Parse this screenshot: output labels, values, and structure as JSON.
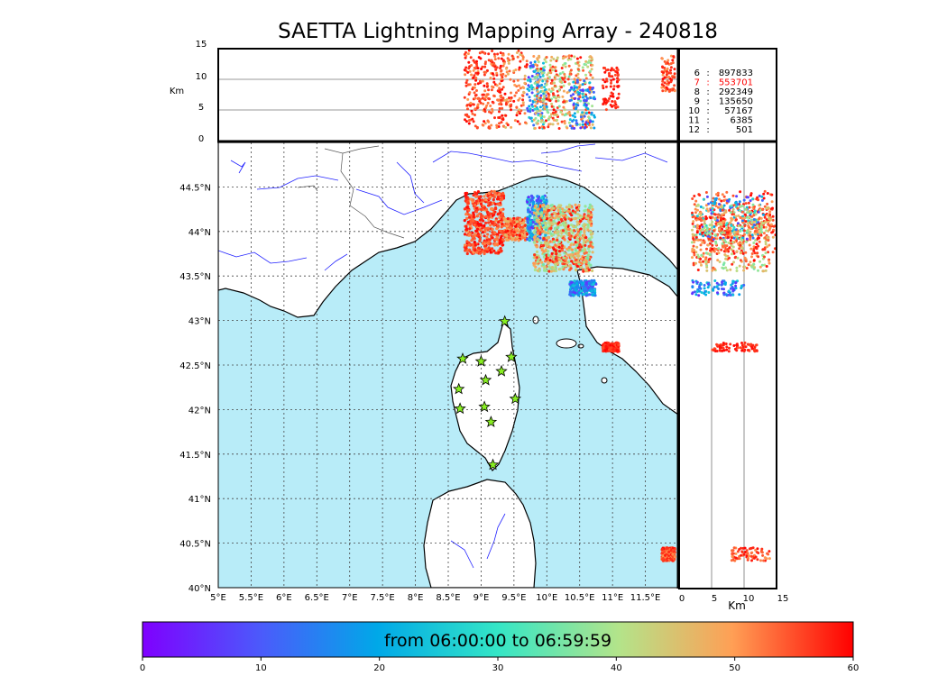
{
  "title": "SAETTA Lightning Mapping Array - 240818",
  "top_panel": {
    "ylabel": "Km",
    "yticks": [
      "0",
      "5",
      "10",
      "15"
    ]
  },
  "right_panel": {
    "xlabel": "Km",
    "xticks": [
      "0",
      "5",
      "10",
      "15"
    ]
  },
  "map": {
    "lon_ticks": [
      "5°E",
      "5.5°E",
      "6°E",
      "6.5°E",
      "7°E",
      "7.5°E",
      "8°E",
      "8.5°E",
      "9°E",
      "9.5°E",
      "10°E",
      "10.5°E",
      "11°E",
      "11.5°E"
    ],
    "lat_ticks": [
      "44.5°N",
      "44°N",
      "43.5°N",
      "43°N",
      "42.5°N",
      "42°N",
      "41.5°N",
      "41°N",
      "40.5°N",
      "40°N"
    ]
  },
  "stations_table": [
    {
      "n": "6",
      "count": "897833",
      "color": "#000000"
    },
    {
      "n": "7",
      "count": "553701",
      "color": "#ff0000"
    },
    {
      "n": "8",
      "count": "292349",
      "color": "#000000"
    },
    {
      "n": "9",
      "count": "135650",
      "color": "#000000"
    },
    {
      "n": "10",
      "count": "57167",
      "color": "#000000"
    },
    {
      "n": "11",
      "count": "6385",
      "color": "#000000"
    },
    {
      "n": "12",
      "count": "501",
      "color": "#000000"
    }
  ],
  "colorbar": {
    "label": "from 06:00:00 to 06:59:59",
    "ticks": [
      "0",
      "10",
      "20",
      "30",
      "40",
      "50",
      "60"
    ],
    "range": [
      0,
      60
    ]
  },
  "chart_data": {
    "type": "scatter",
    "title": "SAETTA Lightning Mapping Array - 240818",
    "xlim": [
      5,
      12
    ],
    "ylim": [
      40,
      45
    ],
    "altitude_range_km": [
      0,
      15
    ],
    "colors": {
      "sea": "#b8ecf8",
      "land": "#ffffff",
      "rivers": "#2222ff",
      "stations": "#88ee22"
    },
    "stations": [
      {
        "lon": 9.36,
        "lat": 42.99
      },
      {
        "lon": 8.72,
        "lat": 42.57
      },
      {
        "lon": 9.0,
        "lat": 42.54
      },
      {
        "lon": 9.46,
        "lat": 42.59
      },
      {
        "lon": 9.31,
        "lat": 42.43
      },
      {
        "lon": 9.07,
        "lat": 42.33
      },
      {
        "lon": 8.66,
        "lat": 42.23
      },
      {
        "lon": 9.52,
        "lat": 42.12
      },
      {
        "lon": 8.68,
        "lat": 42.01
      },
      {
        "lon": 9.05,
        "lat": 42.03
      },
      {
        "lon": 9.15,
        "lat": 41.86
      },
      {
        "lon": 9.18,
        "lat": 41.38
      }
    ],
    "clusters": [
      {
        "lon": [
          8.75,
          9.35
        ],
        "lat": [
          43.75,
          44.45
        ],
        "alt_km": [
          2,
          15
        ],
        "time_min": [
          50,
          60
        ]
      },
      {
        "lon": [
          9.35,
          9.7
        ],
        "lat": [
          43.9,
          44.15
        ],
        "alt_km": [
          2,
          15
        ],
        "time_min": [
          45,
          60
        ]
      },
      {
        "lon": [
          9.7,
          10.0
        ],
        "lat": [
          43.9,
          44.4
        ],
        "alt_km": [
          2,
          13
        ],
        "time_min": [
          5,
          30
        ]
      },
      {
        "lon": [
          9.8,
          10.7
        ],
        "lat": [
          43.55,
          44.3
        ],
        "alt_km": [
          2,
          14
        ],
        "time_min": [
          35,
          60
        ]
      },
      {
        "lon": [
          10.35,
          10.75
        ],
        "lat": [
          43.28,
          43.45
        ],
        "alt_km": [
          2,
          10
        ],
        "time_min": [
          5,
          25
        ]
      },
      {
        "lon": [
          10.85,
          11.1
        ],
        "lat": [
          42.65,
          42.75
        ],
        "alt_km": [
          5,
          12
        ],
        "time_min": [
          55,
          60
        ]
      },
      {
        "lon": [
          11.75,
          11.95
        ],
        "lat": [
          40.3,
          40.45
        ],
        "alt_km": [
          8,
          14
        ],
        "time_min": [
          50,
          60
        ]
      }
    ]
  }
}
